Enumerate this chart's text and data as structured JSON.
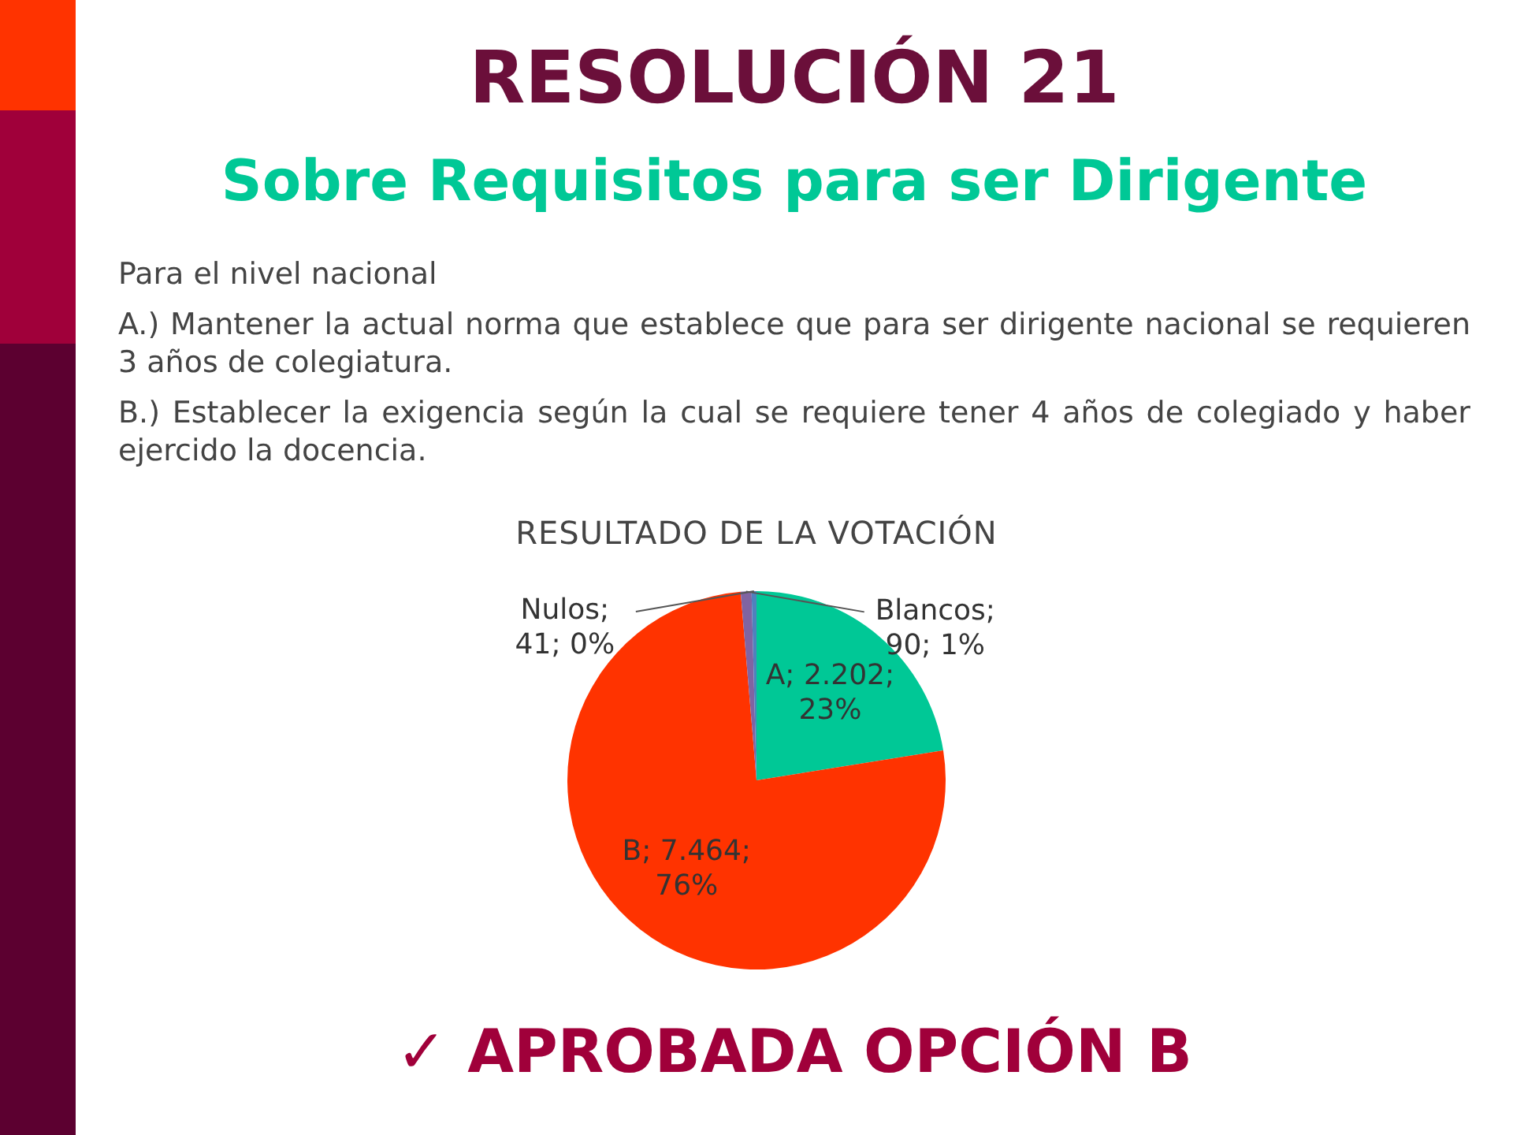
{
  "chart_data": {
    "type": "pie",
    "title": "RESOLUCIÓN 21",
    "subtitle": "Sobre Requisitos para ser Dirigente",
    "annotations": [
      "Para el nivel nacional",
      "A.) Mantener la actual norma que establece que para ser dirigente nacional se requieren 3 años de colegiatura.",
      "B.) Establecer la exigencia según la cual se requiere tener 4 años de colegiado y haber ejercido la docencia.",
      "RESULTADO DE LA VOTACIÓN",
      "✓ APROBADA OPCIÓN B"
    ],
    "categories": [
      "A",
      "B",
      "Blancos",
      "Nulos"
    ],
    "values": [
      2202,
      7464,
      90,
      41
    ],
    "colors": [
      "#00c896",
      "#ff3300",
      "#8064a2",
      "#4f81bd"
    ],
    "value_labels": [
      "; 2.202; 23%",
      "; 7.464; 76%",
      "; 90; 1%",
      "; 41; 0%"
    ],
    "legend": false
  }
}
